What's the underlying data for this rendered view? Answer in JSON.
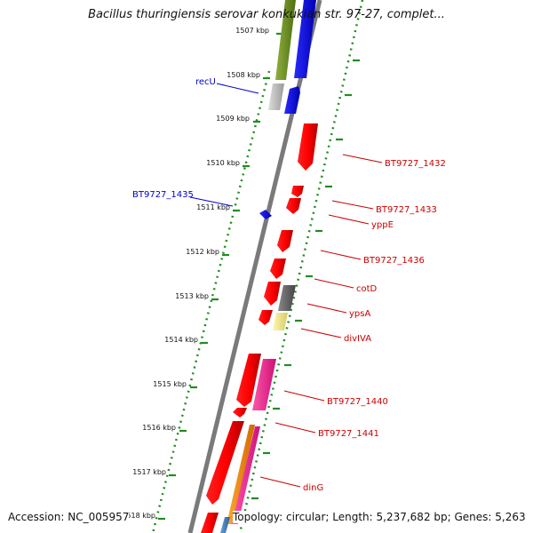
{
  "title": "Bacillus thuringiensis serovar konkukian str. 97-27, complet...",
  "accession": "Accession: NC_005957",
  "topology": "Topology: circular; Length: 5,237,682 bp; Genes: 5,263",
  "ticks": [
    "1507 kbp",
    "1508 kbp",
    "1509 kbp",
    "1510 kbp",
    "1511 kbp",
    "1512 kbp",
    "1513 kbp",
    "1514 kbp",
    "1515 kbp",
    "1516 kbp",
    "1517 kbp",
    "1518 kbp"
  ],
  "genes_left": [
    {
      "label": "recU",
      "color": "#0000cc"
    },
    {
      "label": "BT9727_1435",
      "color": "#0000cc"
    }
  ],
  "genes_right": [
    {
      "label": "BT9727_1432",
      "color": "#cc0000"
    },
    {
      "label": "BT9727_1433",
      "color": "#cc0000"
    },
    {
      "label": "yppE",
      "color": "#cc0000"
    },
    {
      "label": "BT9727_1436",
      "color": "#cc0000"
    },
    {
      "label": "cotD",
      "color": "#cc0000"
    },
    {
      "label": "ypsA",
      "color": "#cc0000"
    },
    {
      "label": "divIVA",
      "color": "#cc0000"
    },
    {
      "label": "BT9727_1440",
      "color": "#cc0000"
    },
    {
      "label": "BT9727_1441",
      "color": "#cc0000"
    },
    {
      "label": "dinG",
      "color": "#cc0000"
    }
  ],
  "colors": {
    "forward_track": "#ff0000",
    "reverse_track": "#0000ff",
    "backbone": "#808080",
    "tick_dots": "#228b22"
  }
}
